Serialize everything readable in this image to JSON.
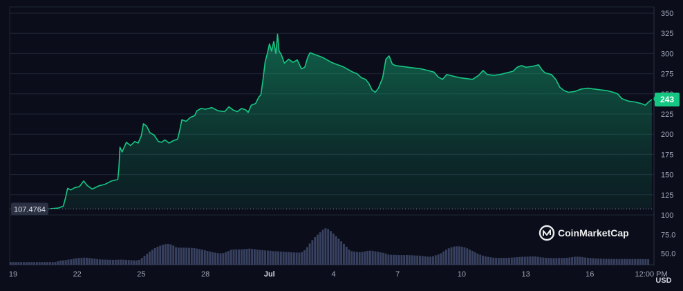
{
  "chart_data": {
    "type": "area",
    "title": "",
    "xlabel": "",
    "ylabel": "",
    "y_unit_label": "USD",
    "ylim": [
      100,
      350
    ],
    "yticks": [
      100,
      125,
      150,
      175,
      200,
      225,
      250,
      275,
      300,
      325,
      350
    ],
    "volume_ticks": [
      "50.0",
      "75.0"
    ],
    "grid": true,
    "legend": "none",
    "x_tick_labels": [
      {
        "x": 0,
        "label": "19"
      },
      {
        "x": 3,
        "label": "22"
      },
      {
        "x": 6,
        "label": "25"
      },
      {
        "x": 9,
        "label": "28"
      },
      {
        "x": 12,
        "label": "Jul"
      },
      {
        "x": 15,
        "label": "4"
      },
      {
        "x": 18,
        "label": "7"
      },
      {
        "x": 21,
        "label": "10"
      },
      {
        "x": 24,
        "label": "13"
      },
      {
        "x": 27,
        "label": "16"
      },
      {
        "x": 29.5,
        "label": "12:00 PM"
      }
    ],
    "reference_line": {
      "value": 107.4764,
      "label": "107.4764"
    },
    "current_value": {
      "value": 243,
      "label": "243"
    },
    "watermark": "CoinMarketCap",
    "line_color": "#16c784",
    "series": [
      {
        "points": [
          [
            1.7,
            107.5
          ],
          [
            2.1,
            108.5
          ],
          [
            2.35,
            111
          ],
          [
            2.45,
            121
          ],
          [
            2.55,
            133
          ],
          [
            2.7,
            131
          ],
          [
            2.9,
            134
          ],
          [
            3.1,
            135
          ],
          [
            3.3,
            142
          ],
          [
            3.45,
            137
          ],
          [
            3.7,
            132
          ],
          [
            4.0,
            136
          ],
          [
            4.3,
            138
          ],
          [
            4.6,
            142
          ],
          [
            4.9,
            144
          ],
          [
            4.95,
            158
          ],
          [
            5.0,
            184
          ],
          [
            5.1,
            178
          ],
          [
            5.3,
            190
          ],
          [
            5.5,
            186
          ],
          [
            5.7,
            191
          ],
          [
            5.85,
            189
          ],
          [
            6.0,
            198
          ],
          [
            6.1,
            213
          ],
          [
            6.25,
            210
          ],
          [
            6.4,
            202
          ],
          [
            6.6,
            199
          ],
          [
            6.8,
            191
          ],
          [
            6.95,
            190
          ],
          [
            7.1,
            193
          ],
          [
            7.3,
            189
          ],
          [
            7.5,
            192
          ],
          [
            7.7,
            194
          ],
          [
            7.8,
            205
          ],
          [
            7.9,
            218
          ],
          [
            8.1,
            216
          ],
          [
            8.3,
            221
          ],
          [
            8.5,
            223
          ],
          [
            8.6,
            229
          ],
          [
            8.8,
            232
          ],
          [
            9.0,
            231
          ],
          [
            9.3,
            233
          ],
          [
            9.6,
            229
          ],
          [
            9.9,
            228
          ],
          [
            10.1,
            234
          ],
          [
            10.3,
            230
          ],
          [
            10.5,
            228
          ],
          [
            10.7,
            232
          ],
          [
            10.9,
            230
          ],
          [
            11.0,
            227
          ],
          [
            11.15,
            236
          ],
          [
            11.35,
            238
          ],
          [
            11.5,
            246
          ],
          [
            11.6,
            249
          ],
          [
            11.7,
            268
          ],
          [
            11.8,
            290
          ],
          [
            11.9,
            300
          ],
          [
            12.0,
            312
          ],
          [
            12.1,
            303
          ],
          [
            12.2,
            315
          ],
          [
            12.3,
            300
          ],
          [
            12.38,
            324
          ],
          [
            12.45,
            303
          ],
          [
            12.55,
            299
          ],
          [
            12.7,
            288
          ],
          [
            12.9,
            293
          ],
          [
            13.1,
            289
          ],
          [
            13.3,
            292
          ],
          [
            13.5,
            281
          ],
          [
            13.65,
            283
          ],
          [
            13.8,
            296
          ],
          [
            13.9,
            301
          ],
          [
            14.1,
            299
          ],
          [
            14.3,
            297
          ],
          [
            14.5,
            295
          ],
          [
            14.7,
            292
          ],
          [
            14.9,
            289
          ],
          [
            15.1,
            287
          ],
          [
            15.3,
            285
          ],
          [
            15.5,
            283
          ],
          [
            15.7,
            280
          ],
          [
            15.9,
            277
          ],
          [
            16.1,
            275
          ],
          [
            16.3,
            270
          ],
          [
            16.5,
            268
          ],
          [
            16.65,
            263
          ],
          [
            16.8,
            255
          ],
          [
            16.95,
            252
          ],
          [
            17.1,
            257
          ],
          [
            17.3,
            270
          ],
          [
            17.45,
            293
          ],
          [
            17.6,
            297
          ],
          [
            17.75,
            287
          ],
          [
            17.9,
            285
          ],
          [
            18.2,
            284
          ],
          [
            18.5,
            283
          ],
          [
            18.8,
            282
          ],
          [
            19.1,
            281
          ],
          [
            19.4,
            279
          ],
          [
            19.7,
            277
          ],
          [
            19.9,
            271
          ],
          [
            20.1,
            268
          ],
          [
            20.3,
            274
          ],
          [
            20.6,
            272
          ],
          [
            20.9,
            270
          ],
          [
            21.2,
            269
          ],
          [
            21.5,
            268
          ],
          [
            21.8,
            273
          ],
          [
            22.0,
            279
          ],
          [
            22.2,
            274
          ],
          [
            22.5,
            273
          ],
          [
            22.8,
            274
          ],
          [
            23.1,
            276
          ],
          [
            23.4,
            278
          ],
          [
            23.6,
            283
          ],
          [
            23.8,
            285
          ],
          [
            24.0,
            283
          ],
          [
            24.3,
            284
          ],
          [
            24.6,
            286
          ],
          [
            24.75,
            280
          ],
          [
            24.9,
            276
          ],
          [
            25.2,
            274
          ],
          [
            25.4,
            268
          ],
          [
            25.6,
            258
          ],
          [
            25.8,
            254
          ],
          [
            26.0,
            252
          ],
          [
            26.3,
            253
          ],
          [
            26.6,
            256
          ],
          [
            26.9,
            257
          ],
          [
            27.2,
            256
          ],
          [
            27.5,
            255
          ],
          [
            27.8,
            254
          ],
          [
            28.1,
            252
          ],
          [
            28.3,
            250
          ],
          [
            28.5,
            244
          ],
          [
            28.8,
            241
          ],
          [
            29.1,
            240
          ],
          [
            29.4,
            238
          ],
          [
            29.6,
            236
          ],
          [
            29.75,
            240
          ],
          [
            29.9,
            243
          ]
        ]
      }
    ],
    "volume": {
      "y_scale": [
        35,
        90
      ],
      "values": [
        38.5,
        38.5,
        38.5,
        38.5,
        38.5,
        38.5,
        38.5,
        38.5,
        38.5,
        38.5,
        38.5,
        38.5,
        38.5,
        38.5,
        38.5,
        38.5,
        38.5,
        38.5,
        39.5,
        40.5,
        40.8,
        41.2,
        41.9,
        42.2,
        43.0,
        43.6,
        44.0,
        44.2,
        44.4,
        44.3,
        44.0,
        43.4,
        43.0,
        42.5,
        42.1,
        41.9,
        41.8,
        41.7,
        41.6,
        41.5,
        41.6,
        41.7,
        41.8,
        41.7,
        41.5,
        41.3,
        41.0,
        40.8,
        40.8,
        41.5,
        43.8,
        46.7,
        49.6,
        52.3,
        54.8,
        57.0,
        58.9,
        60.3,
        61.5,
        62.3,
        62.6,
        62.0,
        60.5,
        58.3,
        57.7,
        57.6,
        57.6,
        57.6,
        57.4,
        57.3,
        57.0,
        56.4,
        55.8,
        55.0,
        54.2,
        53.3,
        52.5,
        51.7,
        51.0,
        50.4,
        50.3,
        50.4,
        51.6,
        53.2,
        54.8,
        55.3,
        55.4,
        55.3,
        55.5,
        55.7,
        56.0,
        56.4,
        56.1,
        55.6,
        55.1,
        54.7,
        54.4,
        54.0,
        53.8,
        53.5,
        53.1,
        52.9,
        52.7,
        52.5,
        52.3,
        52.0,
        51.8,
        51.5,
        51.3,
        51.2,
        51.1,
        51.7,
        54.2,
        58.2,
        63.1,
        67.7,
        71.6,
        74.9,
        78.0,
        81.3,
        83.4,
        82.5,
        79.7,
        76.4,
        72.9,
        69.5,
        66.0,
        62.6,
        58.9,
        55.0,
        53.0,
        52.3,
        52.0,
        51.7,
        51.9,
        52.6,
        53.4,
        53.7,
        53.4,
        52.7,
        52.1,
        51.4,
        50.8,
        49.9,
        48.5,
        48.1,
        48.0,
        47.9,
        47.8,
        47.8,
        47.8,
        47.8,
        47.7,
        47.5,
        47.3,
        47.2,
        47.1,
        46.6,
        46.1,
        45.8,
        45.7,
        46.3,
        47.5,
        48.6,
        50.2,
        52.6,
        55.0,
        56.8,
        58.2,
        59.1,
        59.5,
        59.4,
        58.9,
        58.0,
        56.7,
        55.0,
        53.4,
        51.5,
        49.8,
        48.3,
        47.1,
        46.2,
        45.4,
        44.8,
        44.4,
        44.2,
        44.1,
        44.1,
        44.1,
        44.2,
        44.3,
        44.5,
        44.7,
        45.0,
        45.2,
        45.6,
        45.6,
        45.8,
        45.9,
        46.0,
        46.0,
        45.5,
        44.9,
        44.6,
        44.2,
        44.0,
        43.8,
        43.8,
        43.9,
        44.0,
        44.0,
        44.0,
        44.2,
        44.6,
        45.1,
        45.6,
        45.7,
        45.5,
        45.1,
        44.6,
        44.2,
        43.9,
        43.7,
        43.4,
        43.2,
        43.0,
        42.9,
        42.8,
        42.7,
        42.7,
        42.6,
        42.6,
        42.6,
        42.6,
        42.6,
        42.6,
        42.6,
        42.6,
        42.6,
        42.6,
        42.5,
        42.5,
        42.4,
        42.4
      ]
    }
  }
}
